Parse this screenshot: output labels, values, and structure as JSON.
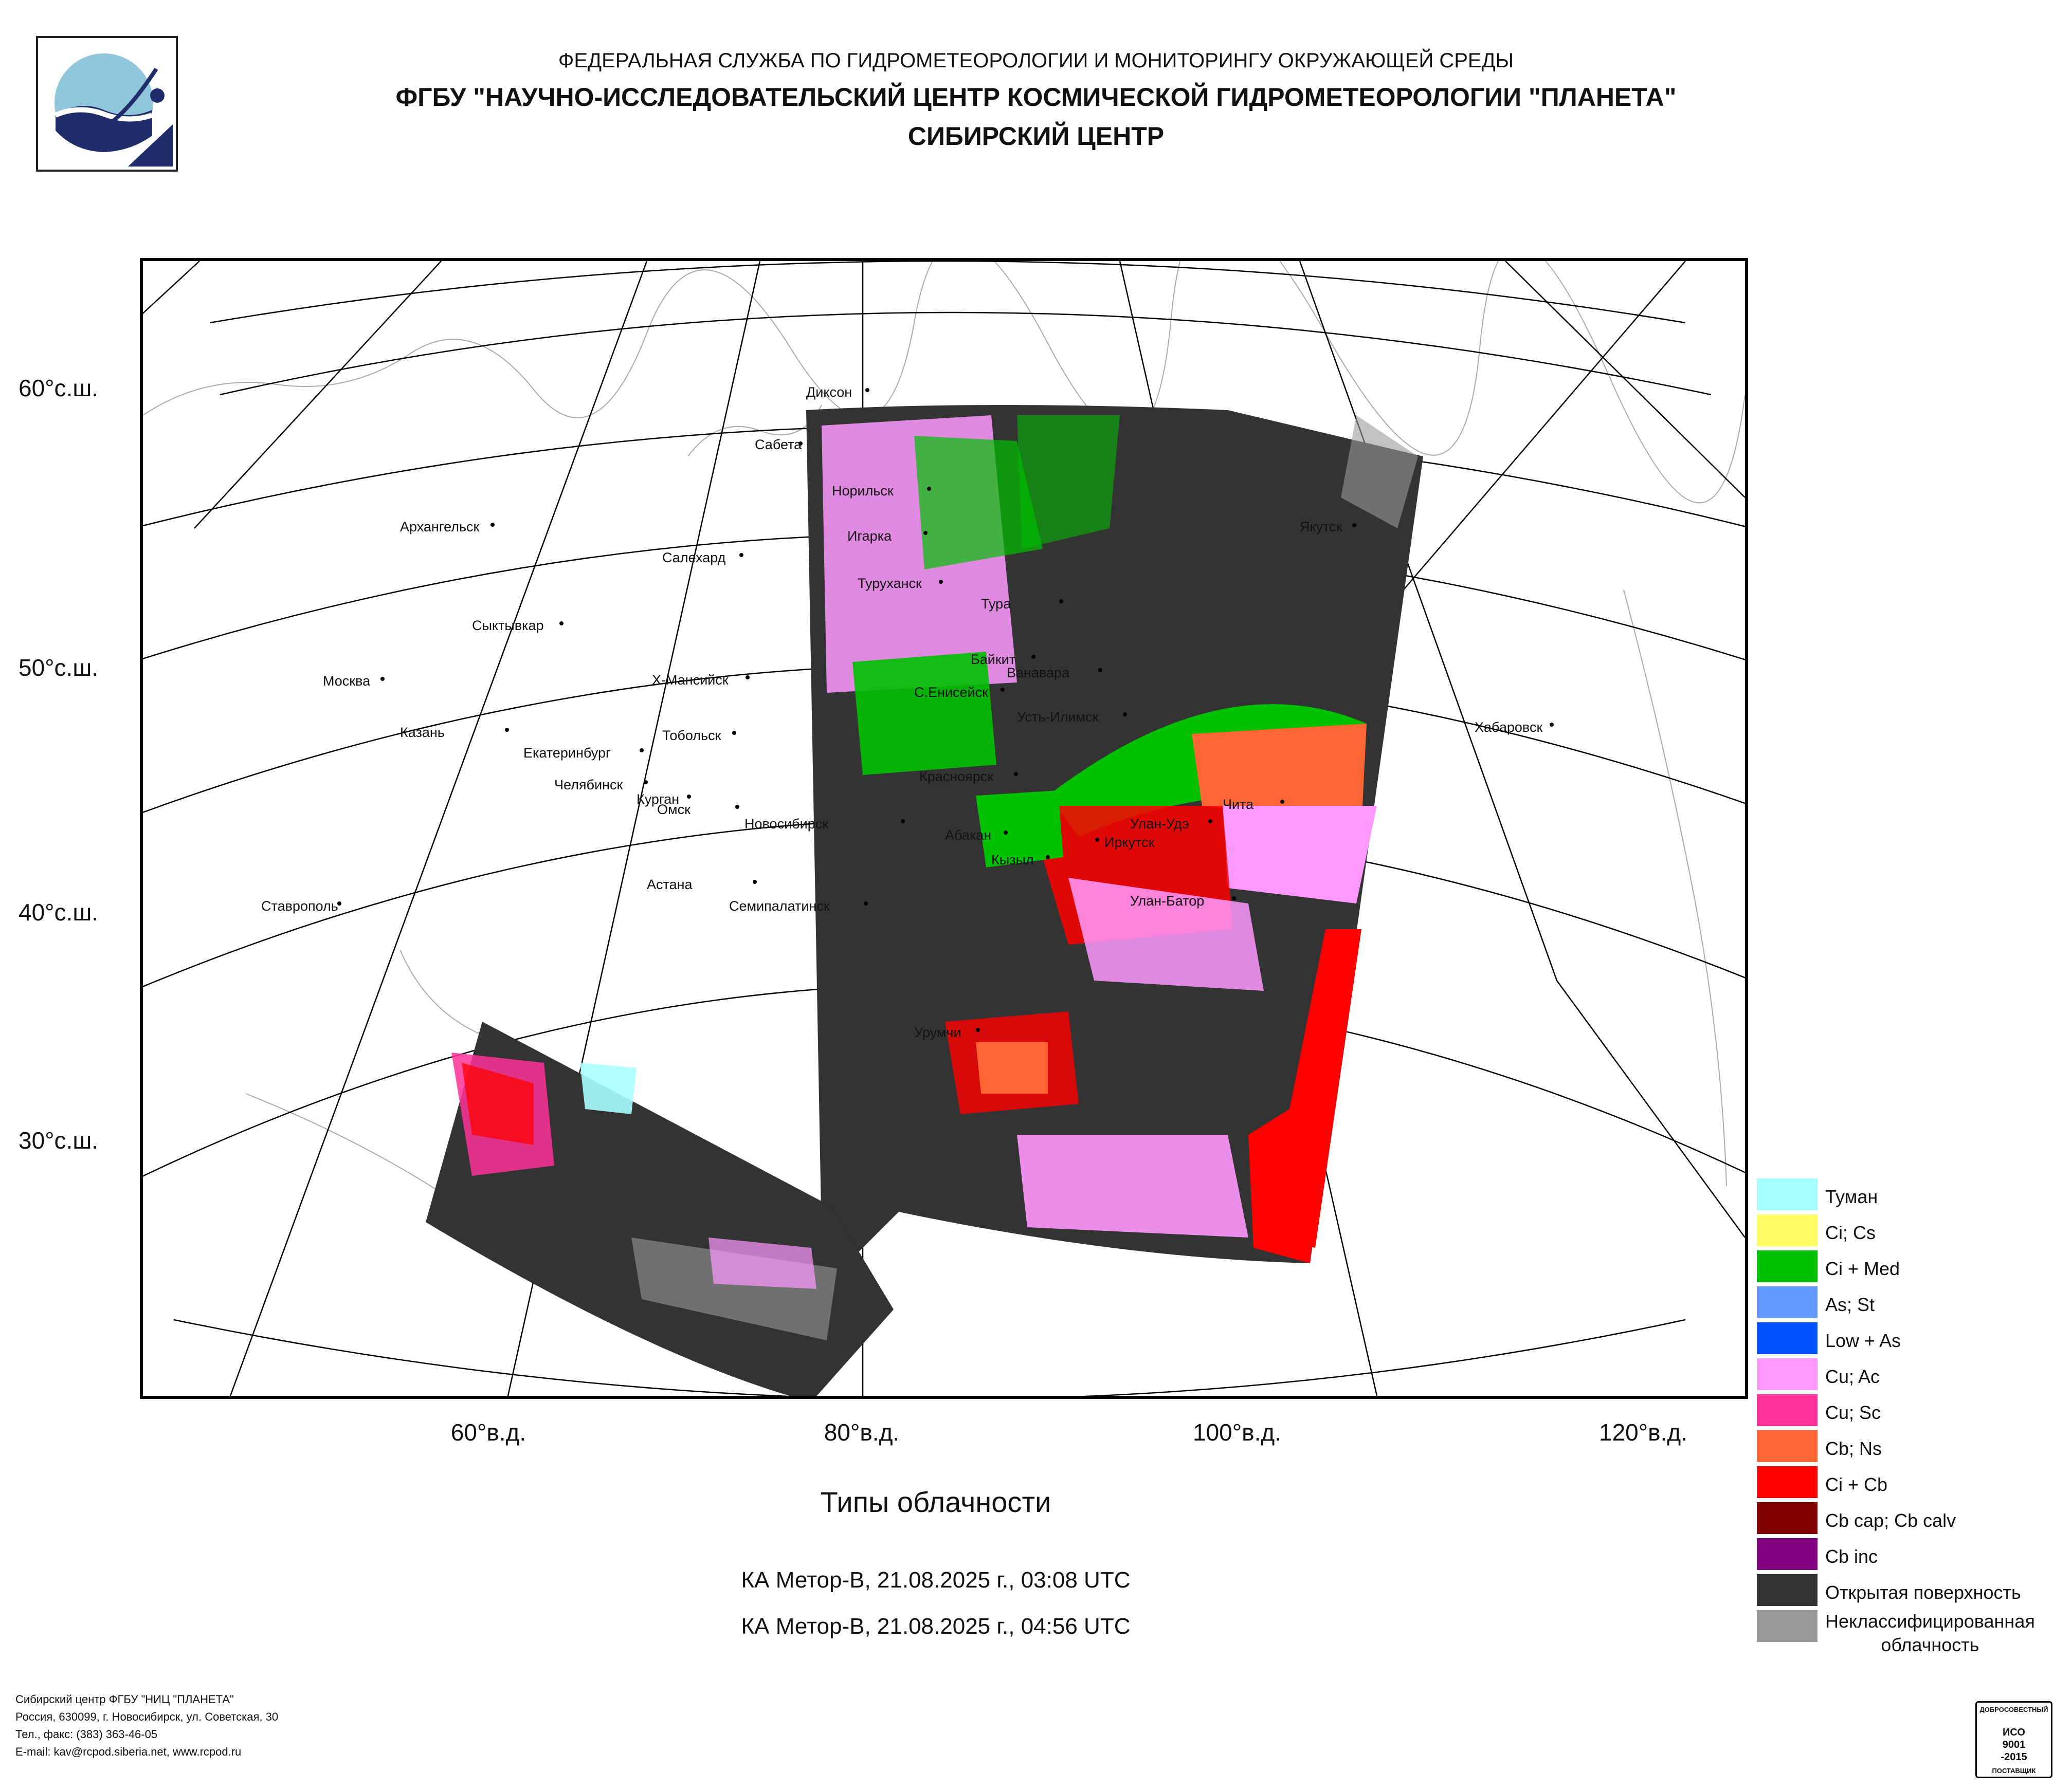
{
  "header": {
    "line1": "ФЕДЕРАЛЬНАЯ СЛУЖБА ПО ГИДРОМЕТЕОРОЛОГИИ И МОНИТОРИНГУ ОКРУЖАЮЩЕЙ СРЕДЫ",
    "line2": "ФГБУ \"НАУЧНО-ИССЛЕДОВАТЕЛЬСКИЙ ЦЕНТР КОСМИЧЕСКОЙ ГИДРОМЕТЕОРОЛОГИИ \"ПЛАНЕТА\"",
    "line3": "СИБИРСКИЙ ЦЕНТР"
  },
  "map": {
    "lat_labels": [
      "60°с.ш.",
      "50°с.ш.",
      "40°с.ш.",
      "30°с.ш."
    ],
    "lon_labels": [
      "60°в.д.",
      "80°в.д.",
      "100°в.д.",
      "120°в.д."
    ],
    "cities": [
      "Диксон",
      "Сабета",
      "Норильск",
      "Игарка",
      "Архангельск",
      "Салехард",
      "Туруханск",
      "Тура",
      "Якутск",
      "Сыктывкар",
      "Байкит",
      "Ванавара",
      "Москва",
      "Х-Мансийск",
      "С.Енисейск",
      "Усть-Илимск",
      "Хабаровск",
      "Казань",
      "Екатеринбург",
      "Тобольск",
      "Челябинск",
      "Курган",
      "Красноярск",
      "Чита",
      "Омск",
      "Новосибирск",
      "Абакан",
      "Улан-Удэ",
      "Иркутск",
      "Кызыл",
      "Астана",
      "Ставрополь",
      "Семипалатинск",
      "Улан-Батор",
      "Урумчи"
    ]
  },
  "title": "Типы облачности",
  "satellite_passes": [
    "КА Метор-В, 21.08.2025 г., 03:08 UTC",
    "КА Метор-В, 21.08.2025 г., 04:56 UTC"
  ],
  "legend": [
    {
      "label": "Туман",
      "color": "#a8ffff"
    },
    {
      "label": "Ci; Cs",
      "color": "#ffff66"
    },
    {
      "label": "Ci + Med",
      "color": "#00c000"
    },
    {
      "label": "As; St",
      "color": "#6699ff"
    },
    {
      "label": "Low + As",
      "color": "#0050ff"
    },
    {
      "label": "Cu; Ac",
      "color": "#ff99ff"
    },
    {
      "label": "Cu; Sc",
      "color": "#ff3399"
    },
    {
      "label": "Cb; Ns",
      "color": "#ff6633"
    },
    {
      "label": "Ci + Cb",
      "color": "#ff0000"
    },
    {
      "label": "Cb cap; Cb calv",
      "color": "#800000"
    },
    {
      "label": "Cb inc",
      "color": "#800080"
    },
    {
      "label": "Открытая поверхность",
      "color": "#333333"
    },
    {
      "label": "Неклассифицированная облачность",
      "color": "#999999"
    }
  ],
  "footer": {
    "line1": "Сибирский центр ФГБУ \"НИЦ \"ПЛАНЕТА\"",
    "line2": "Россия, 630099, г. Новосибирск, ул. Советская, 30",
    "line3": "Тел., факс: (383) 363-46-05",
    "line4": "E-mail: kav@rcpod.siberia.net, www.rcpod.ru"
  },
  "iso_badge": {
    "top": "ДОБРОСОВЕСТНЫЙ",
    "l1": "ИСО",
    "l2": "9001",
    "l3": "-2015",
    "bottom": "ПОСТАВЩИК"
  }
}
